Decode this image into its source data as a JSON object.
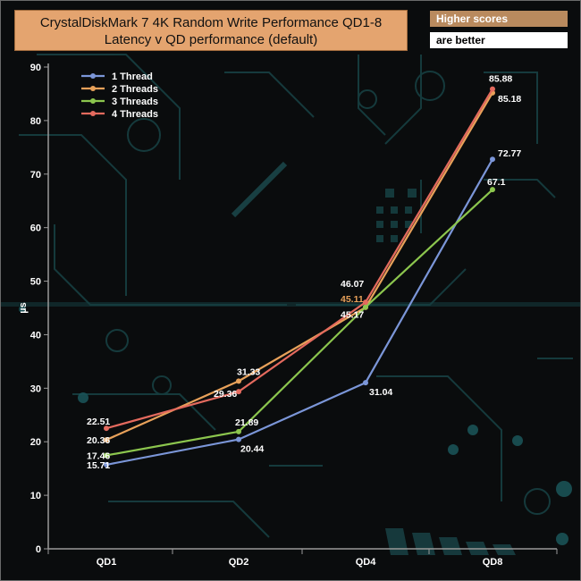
{
  "title_line1": "CrystalDiskMark 7 4K Random Write Performance QD1-8",
  "title_line2": "Latency v QD performance (default)",
  "note_line1": "Higher scores",
  "note_line2": "are better",
  "chart_data": {
    "type": "line",
    "title": "CrystalDiskMark 7 4K Random Write Performance QD1-8 Latency v QD performance (default)",
    "categories": [
      "QD1",
      "QD2",
      "QD4",
      "QD8"
    ],
    "ylabel": "µs",
    "xlabel": "",
    "ylim": [
      0,
      90
    ],
    "yticks": [
      0,
      10,
      20,
      30,
      40,
      50,
      60,
      70,
      80,
      90
    ],
    "legend_position": "top-left",
    "grid": false,
    "series": [
      {
        "name": "1 Thread",
        "color": "#7b96d8",
        "values": [
          15.71,
          20.44,
          31.04,
          72.77
        ],
        "labels": [
          "15.71",
          "20.44",
          "31.04",
          "72.77"
        ],
        "label_colors": [
          "#ffffff",
          "#ffffff",
          "#ffffff",
          "#ffffff"
        ]
      },
      {
        "name": "2 Threads",
        "color": "#e8a15a",
        "values": [
          20.36,
          31.33,
          45.11,
          85.18
        ],
        "labels": [
          "20.36",
          "31.33",
          "45.11",
          "85.18"
        ],
        "label_colors": [
          "#ffffff",
          "#ffffff",
          "#e8a15a",
          "#ffffff"
        ]
      },
      {
        "name": "3 Threads",
        "color": "#8cc64e",
        "values": [
          17.46,
          21.89,
          45.17,
          67.1
        ],
        "labels": [
          "17.46",
          "21.89",
          "45.17",
          "67.1"
        ],
        "label_colors": [
          "#ffffff",
          "#ffffff",
          "#ffffff",
          "#ffffff"
        ]
      },
      {
        "name": "4 Threads",
        "color": "#e46a5e",
        "values": [
          22.51,
          29.36,
          46.07,
          85.88
        ],
        "labels": [
          "22.51",
          "29.36",
          "46.07",
          "85.88"
        ],
        "label_colors": [
          "#ffffff",
          "#ffffff",
          "#ffffff",
          "#ffffff"
        ]
      }
    ]
  }
}
